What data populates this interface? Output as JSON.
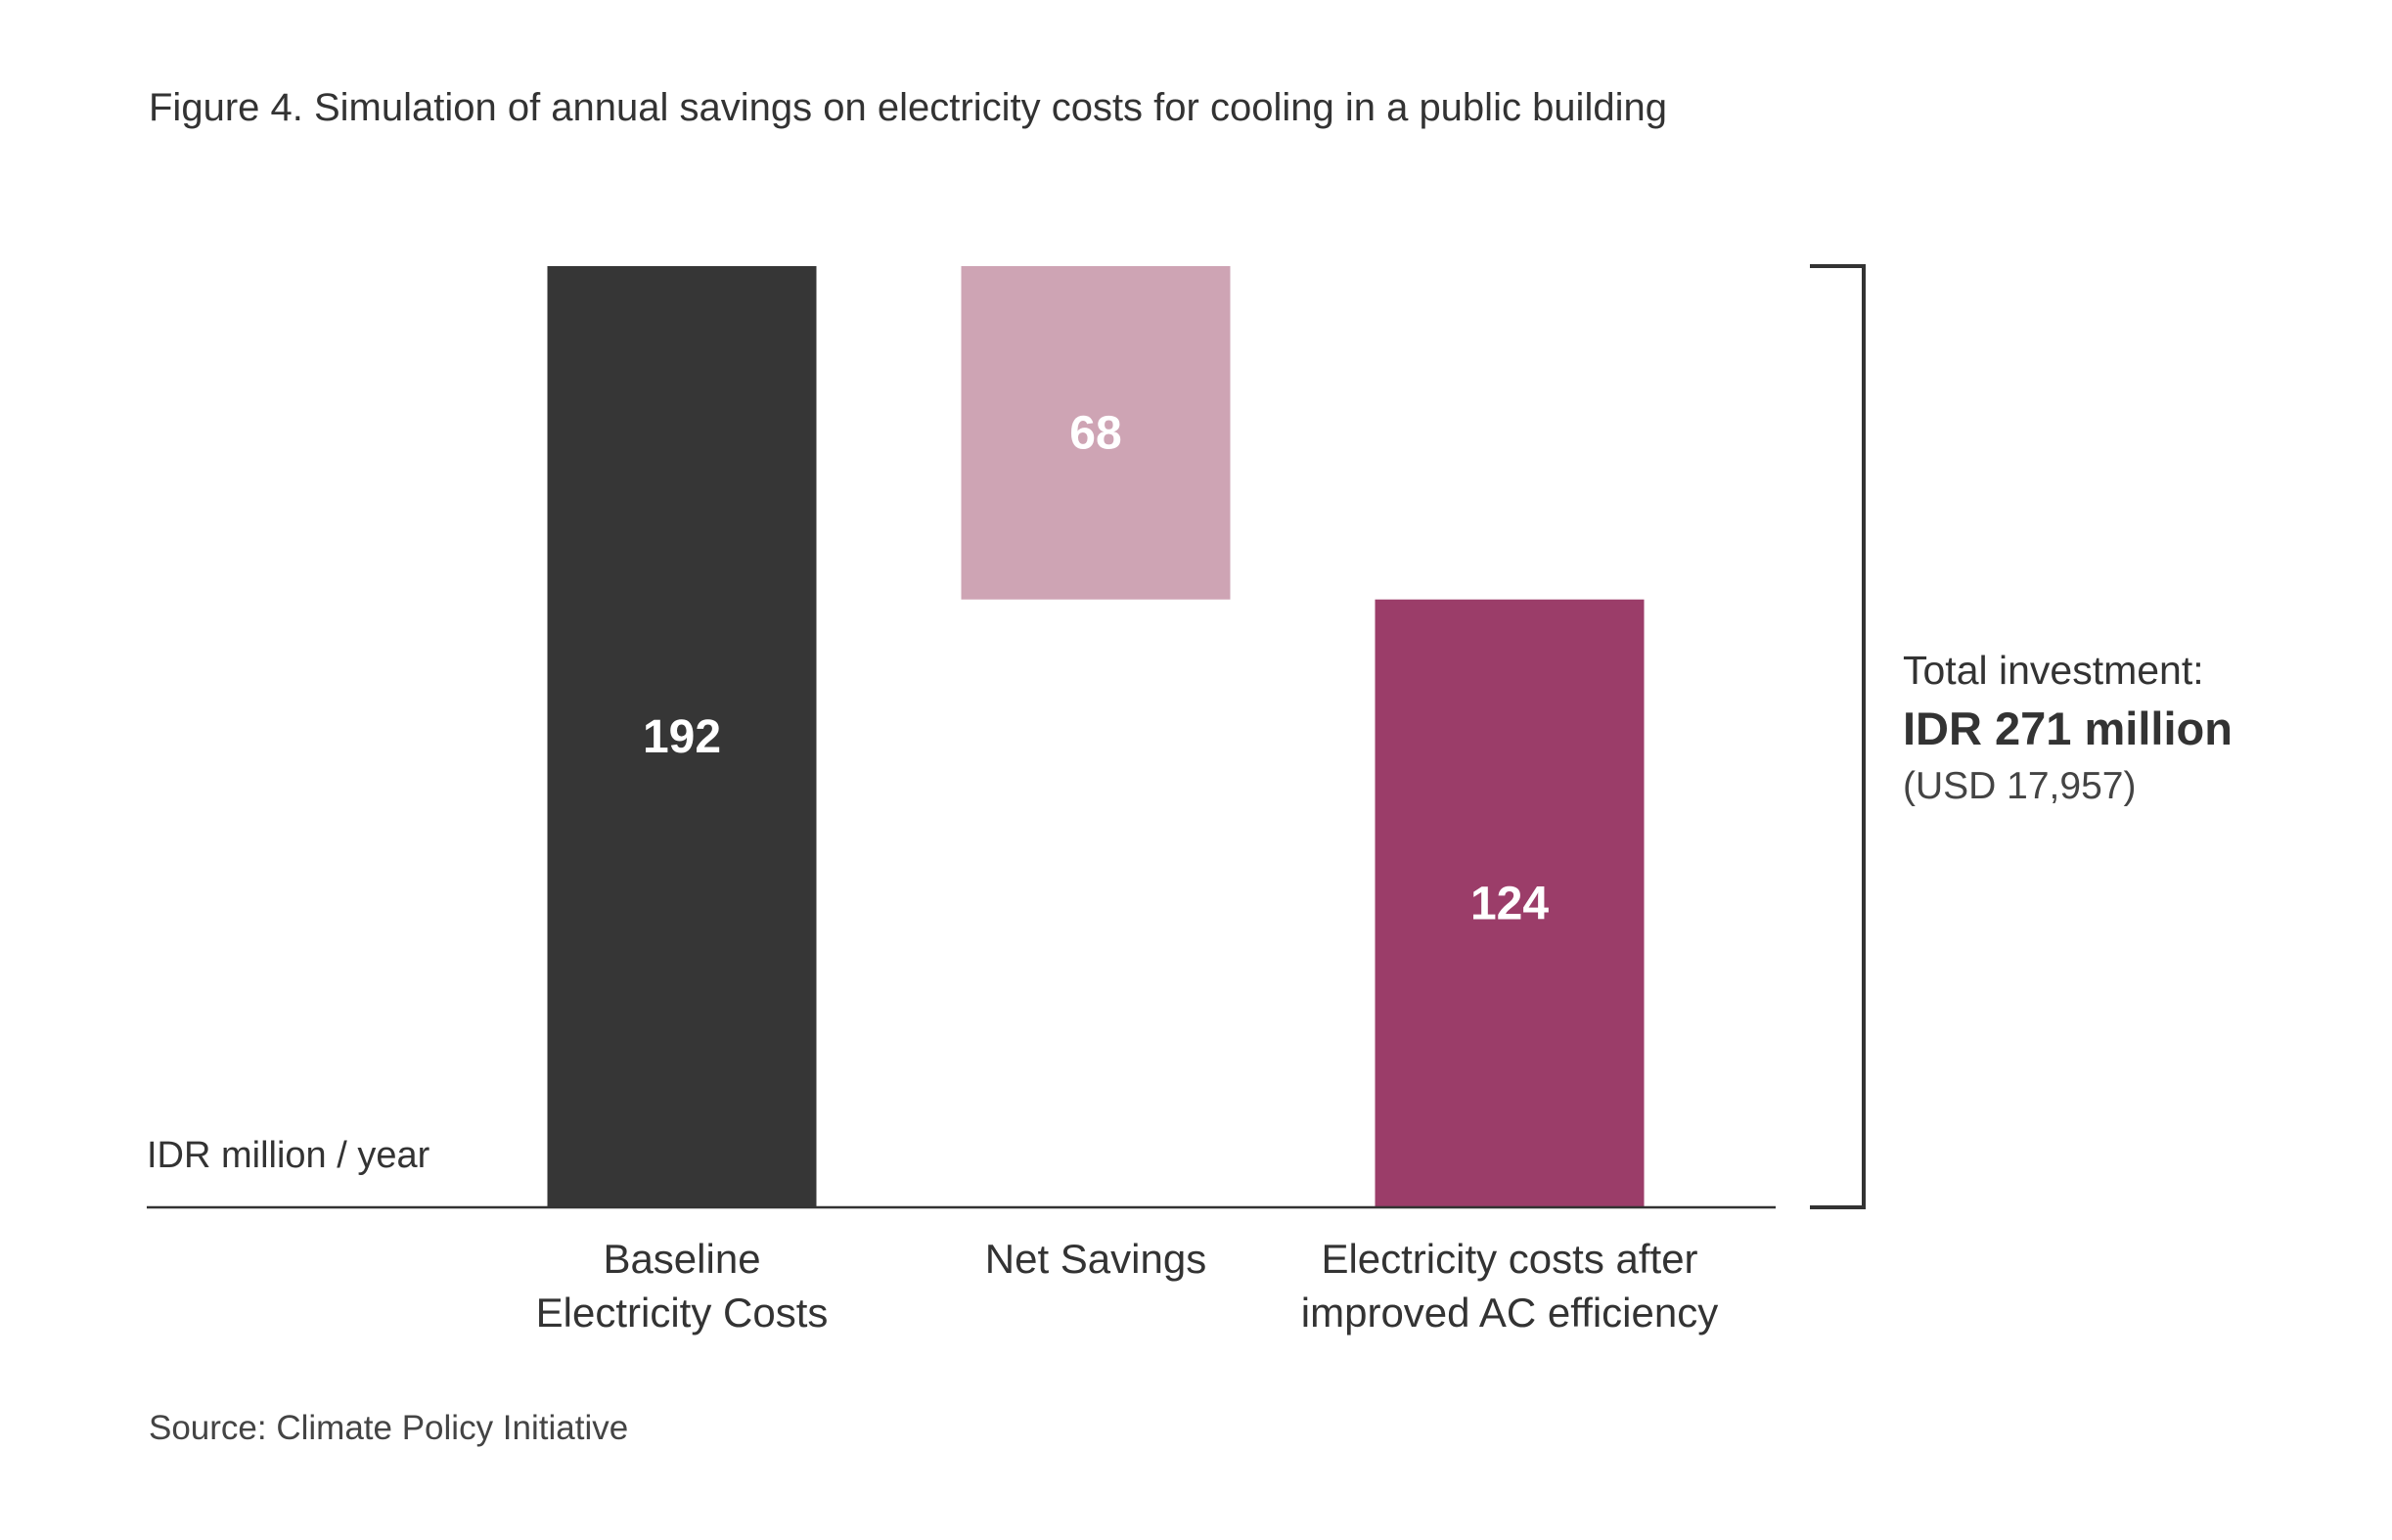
{
  "title": "Figure 4. Simulation of annual savings on electricity costs for cooling in a public building",
  "source": "Source: Climate Policy Initiative",
  "unit_label": "IDR million / year",
  "side_note": {
    "line1": "Total investment:",
    "line2": "IDR 271 million",
    "line3": "(USD 17,957)"
  },
  "colors": {
    "baseline": "#363636",
    "savings": "#cea4b4",
    "after": "#9b3d69",
    "axis": "#333333",
    "value_label": "#ffffff"
  },
  "chart_data": {
    "type": "bar",
    "subtype": "waterfall",
    "title": "Figure 4. Simulation of annual savings on electricity costs for cooling in a public building",
    "ylabel": "IDR million / year",
    "ylim": [
      0,
      192
    ],
    "grid": false,
    "legend": "none",
    "categories": [
      [
        "Baseline",
        "Electricity Costs"
      ],
      [
        "Net Savings"
      ],
      [
        "Electricity costs after",
        "improved AC efficiency"
      ]
    ],
    "bars": [
      {
        "value": 192,
        "base": 0,
        "label": "192",
        "color_key": "baseline"
      },
      {
        "value": 68,
        "base": 124,
        "label": "68",
        "color_key": "savings"
      },
      {
        "value": 124,
        "base": 0,
        "label": "124",
        "color_key": "after"
      }
    ],
    "annotation": {
      "bracket_span": [
        0,
        192
      ],
      "text": [
        "Total investment:",
        "IDR 271 million",
        "(USD 17,957)"
      ]
    }
  }
}
